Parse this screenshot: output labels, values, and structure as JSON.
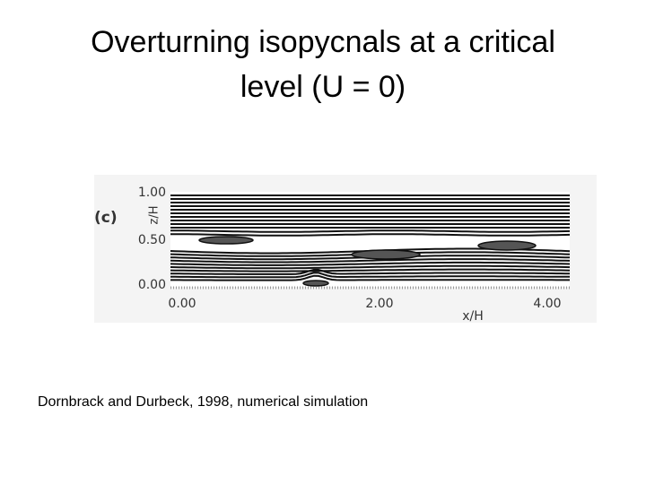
{
  "slide": {
    "title_lines": [
      "Overturning isopycnals at a critical",
      "level (U = 0)"
    ],
    "figure": {
      "panel_label": "(c)",
      "y_label": "z/H",
      "yticks": [
        "1.00",
        "0.50",
        "0.00"
      ],
      "x_label": "x/H",
      "xticks": [
        "0.00",
        "2.00",
        "4.00"
      ]
    },
    "caption": "Dornbrack and Durbeck, 1998, numerical simulation"
  }
}
